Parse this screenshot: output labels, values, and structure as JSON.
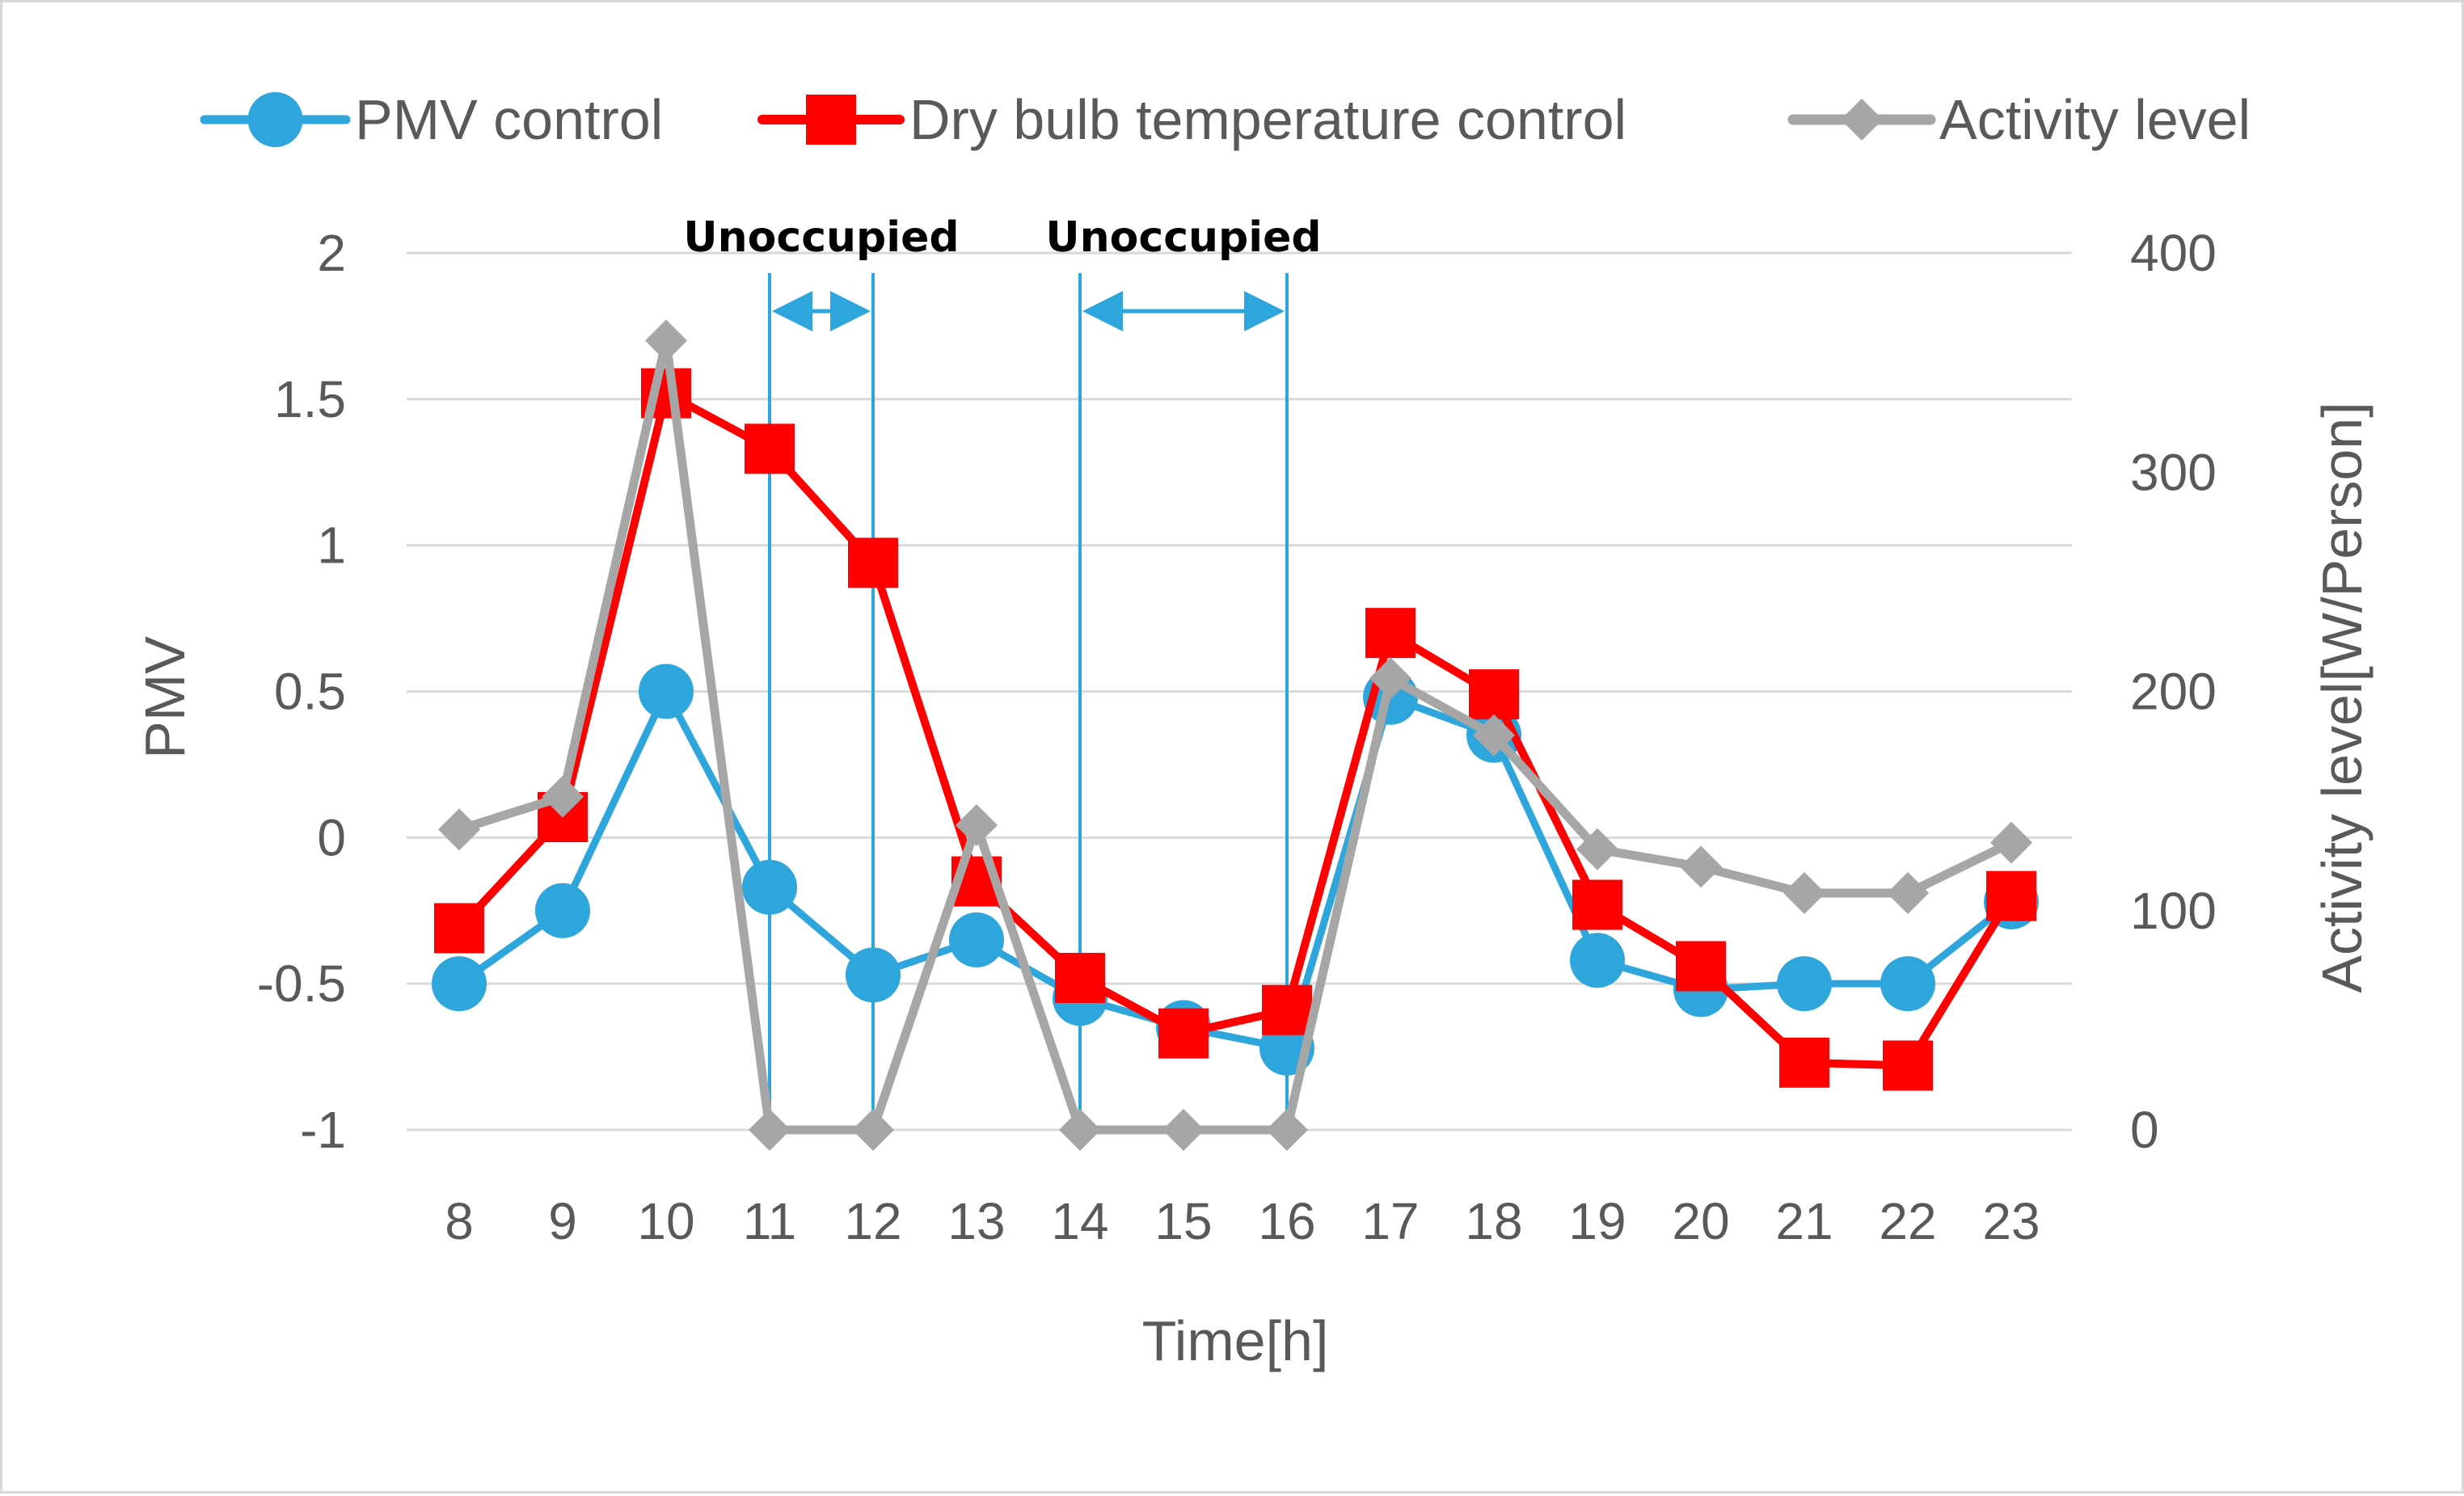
{
  "colors": {
    "pmv": "#2ea6dc",
    "dry_bulb": "#ff0000",
    "activity": "#a6a6a6",
    "annotation": "#2ea6dc",
    "grid": "#d9d9d9",
    "text": "#595959"
  },
  "chart_data": {
    "type": "line",
    "title": "",
    "xlabel": "Time[h]",
    "ylabel": "PMV",
    "y2label": "Activity level[W/Person]",
    "ylim": [
      -1,
      2
    ],
    "y2lim": [
      0,
      400
    ],
    "yticks": [
      "2",
      "1.5",
      "1",
      "0.5",
      "0",
      "-0.5",
      "-1"
    ],
    "y2ticks": [
      "400",
      "300",
      "200",
      "100",
      "0"
    ],
    "grid": true,
    "legend_position": "top",
    "categories": [
      "8",
      "9",
      "10",
      "11",
      "12",
      "13",
      "14",
      "15",
      "16",
      "17",
      "18",
      "19",
      "20",
      "21",
      "22",
      "23"
    ],
    "series": [
      {
        "name": "PMV control",
        "axis": "left",
        "marker": "circle",
        "values": [
          -0.5,
          -0.25,
          0.5,
          -0.17,
          -0.47,
          -0.35,
          -0.55,
          -0.65,
          -0.72,
          0.48,
          0.35,
          -0.42,
          -0.52,
          -0.5,
          -0.5,
          -0.22
        ]
      },
      {
        "name": "Dry bulb temperature control",
        "axis": "left",
        "marker": "square",
        "values": [
          -0.31,
          0.07,
          1.52,
          1.33,
          0.94,
          -0.15,
          -0.48,
          -0.67,
          -0.59,
          0.7,
          0.49,
          -0.23,
          -0.44,
          -0.77,
          -0.78,
          -0.2
        ]
      },
      {
        "name": "Activity level",
        "axis": "right",
        "marker": "diamond",
        "values": [
          137,
          152,
          360,
          0,
          0,
          139,
          0,
          0,
          0,
          206,
          180,
          128,
          120,
          108,
          108,
          131
        ]
      }
    ],
    "annotations": [
      {
        "label": "Unoccupied",
        "from": "11",
        "to": "12"
      },
      {
        "label": "Unoccupied",
        "from": "14",
        "to": "16"
      }
    ]
  }
}
